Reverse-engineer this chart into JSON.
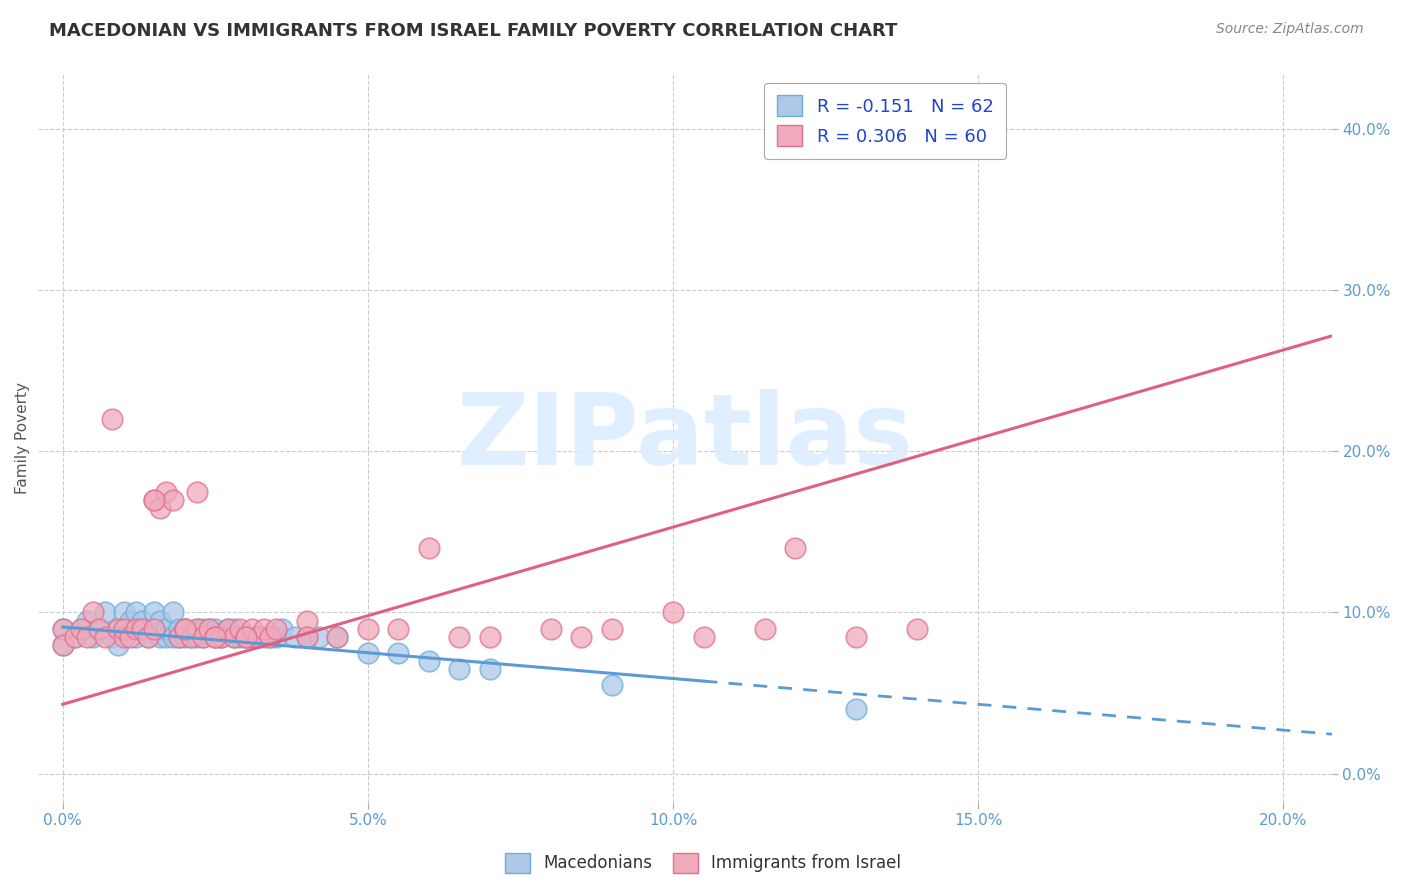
{
  "title": "MACEDONIAN VS IMMIGRANTS FROM ISRAEL FAMILY POVERTY CORRELATION CHART",
  "source": "Source: ZipAtlas.com",
  "xlabel_ticks": [
    "0.0%",
    "5.0%",
    "10.0%",
    "15.0%",
    "20.0%"
  ],
  "xlabel_vals": [
    0.0,
    0.05,
    0.1,
    0.15,
    0.2
  ],
  "ylabel": "Family Poverty",
  "ylabel_ticks": [
    "0.0%",
    "10.0%",
    "20.0%",
    "30.0%",
    "40.0%"
  ],
  "ylabel_vals": [
    0.0,
    0.1,
    0.2,
    0.3,
    0.4
  ],
  "xlim": [
    -0.004,
    0.208
  ],
  "ylim": [
    -0.018,
    0.435
  ],
  "blue_R": -0.151,
  "blue_N": 62,
  "pink_R": 0.306,
  "pink_N": 60,
  "blue_color": "#adc8e8",
  "pink_color": "#f0aabb",
  "blue_edge_color": "#6baed6",
  "pink_edge_color": "#e07090",
  "blue_line_color": "#5b9bd5",
  "pink_line_color": "#e06080",
  "watermark_color": "#ddeeff",
  "legend_label_blue": "Macedonians",
  "legend_label_pink": "Immigrants from Israel",
  "blue_line_solid_end": 0.105,
  "blue_line_dashed_end": 0.208,
  "pink_line_end": 0.208,
  "blue_intercept": 0.091,
  "blue_slope": -0.32,
  "pink_intercept": 0.043,
  "pink_slope": 1.1,
  "blue_scatter_x": [
    0.0,
    0.0,
    0.002,
    0.003,
    0.004,
    0.005,
    0.006,
    0.007,
    0.008,
    0.009,
    0.009,
    0.01,
    0.01,
    0.011,
    0.012,
    0.012,
    0.013,
    0.013,
    0.014,
    0.015,
    0.015,
    0.016,
    0.016,
    0.017,
    0.017,
    0.018,
    0.018,
    0.019,
    0.019,
    0.02,
    0.02,
    0.021,
    0.022,
    0.022,
    0.023,
    0.023,
    0.024,
    0.025,
    0.025,
    0.026,
    0.027,
    0.028,
    0.028,
    0.029,
    0.03,
    0.031,
    0.032,
    0.033,
    0.034,
    0.035,
    0.036,
    0.038,
    0.04,
    0.042,
    0.045,
    0.05,
    0.055,
    0.06,
    0.065,
    0.07,
    0.09,
    0.13
  ],
  "blue_scatter_y": [
    0.09,
    0.08,
    0.085,
    0.09,
    0.095,
    0.085,
    0.09,
    0.1,
    0.085,
    0.09,
    0.08,
    0.09,
    0.1,
    0.095,
    0.1,
    0.085,
    0.095,
    0.09,
    0.085,
    0.09,
    0.1,
    0.095,
    0.085,
    0.085,
    0.09,
    0.1,
    0.085,
    0.085,
    0.09,
    0.085,
    0.09,
    0.085,
    0.085,
    0.09,
    0.085,
    0.09,
    0.09,
    0.085,
    0.09,
    0.085,
    0.09,
    0.085,
    0.09,
    0.085,
    0.085,
    0.085,
    0.085,
    0.085,
    0.085,
    0.085,
    0.09,
    0.085,
    0.085,
    0.085,
    0.085,
    0.075,
    0.075,
    0.07,
    0.065,
    0.065,
    0.055,
    0.04
  ],
  "pink_scatter_x": [
    0.0,
    0.0,
    0.002,
    0.003,
    0.004,
    0.005,
    0.006,
    0.007,
    0.008,
    0.009,
    0.01,
    0.01,
    0.011,
    0.012,
    0.013,
    0.014,
    0.015,
    0.015,
    0.016,
    0.017,
    0.018,
    0.019,
    0.02,
    0.021,
    0.022,
    0.022,
    0.023,
    0.024,
    0.025,
    0.026,
    0.027,
    0.028,
    0.029,
    0.03,
    0.031,
    0.032,
    0.033,
    0.034,
    0.035,
    0.04,
    0.04,
    0.045,
    0.05,
    0.055,
    0.06,
    0.065,
    0.07,
    0.08,
    0.085,
    0.09,
    0.1,
    0.105,
    0.115,
    0.12,
    0.13,
    0.14,
    0.015,
    0.02,
    0.025,
    0.03
  ],
  "pink_scatter_y": [
    0.09,
    0.08,
    0.085,
    0.09,
    0.085,
    0.1,
    0.09,
    0.085,
    0.22,
    0.09,
    0.085,
    0.09,
    0.085,
    0.09,
    0.09,
    0.085,
    0.09,
    0.17,
    0.165,
    0.175,
    0.17,
    0.085,
    0.09,
    0.085,
    0.175,
    0.09,
    0.085,
    0.09,
    0.085,
    0.085,
    0.09,
    0.085,
    0.09,
    0.085,
    0.09,
    0.085,
    0.09,
    0.085,
    0.09,
    0.095,
    0.085,
    0.085,
    0.09,
    0.09,
    0.14,
    0.085,
    0.085,
    0.09,
    0.085,
    0.09,
    0.1,
    0.085,
    0.09,
    0.14,
    0.085,
    0.09,
    0.17,
    0.09,
    0.085,
    0.085
  ]
}
